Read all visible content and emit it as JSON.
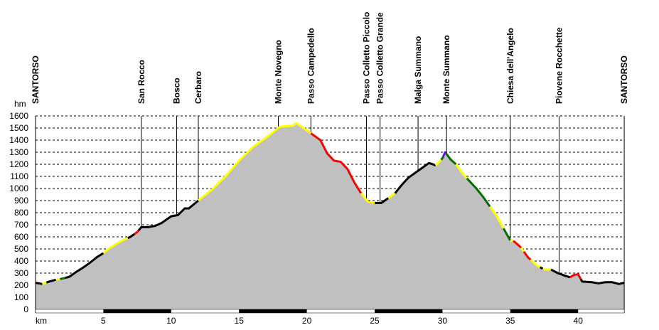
{
  "chart_data": {
    "type": "area",
    "title": "",
    "xlabel": "km",
    "ylabel": "hm",
    "xlim": [
      0,
      43.4
    ],
    "ylim": [
      0,
      1600
    ],
    "grid": true,
    "y_ticks": [
      0,
      100,
      200,
      300,
      400,
      500,
      600,
      700,
      800,
      900,
      1000,
      1100,
      1200,
      1300,
      1400,
      1500,
      1600
    ],
    "x_ticks": [
      5,
      10,
      15,
      20,
      25,
      30,
      35,
      40
    ],
    "fill_color": "#c0c0c0",
    "profile": [
      [
        0,
        220
      ],
      [
        0.5,
        210
      ],
      [
        1,
        230
      ],
      [
        1.5,
        245
      ],
      [
        2,
        255
      ],
      [
        2.5,
        270
      ],
      [
        3,
        310
      ],
      [
        3.5,
        345
      ],
      [
        4,
        385
      ],
      [
        4.5,
        430
      ],
      [
        5,
        465
      ],
      [
        5.5,
        510
      ],
      [
        6,
        545
      ],
      [
        6.5,
        575
      ],
      [
        7,
        600
      ],
      [
        7.5,
        640
      ],
      [
        7.8,
        680
      ],
      [
        8.3,
        680
      ],
      [
        8.8,
        690
      ],
      [
        9.3,
        715
      ],
      [
        10,
        770
      ],
      [
        10.5,
        780
      ],
      [
        11,
        835
      ],
      [
        11.3,
        835
      ],
      [
        12,
        900
      ],
      [
        13,
        990
      ],
      [
        14,
        1100
      ],
      [
        15,
        1230
      ],
      [
        16,
        1340
      ],
      [
        17,
        1420
      ],
      [
        18,
        1510
      ],
      [
        19,
        1520
      ],
      [
        19.2,
        1540
      ],
      [
        19.5,
        1520
      ],
      [
        20,
        1480
      ],
      [
        20.5,
        1440
      ],
      [
        21,
        1400
      ],
      [
        21.5,
        1290
      ],
      [
        22,
        1230
      ],
      [
        22.5,
        1220
      ],
      [
        23,
        1160
      ],
      [
        23.5,
        1050
      ],
      [
        24,
        960
      ],
      [
        24.5,
        890
      ],
      [
        25,
        880
      ],
      [
        25.5,
        880
      ],
      [
        26,
        920
      ],
      [
        26.5,
        960
      ],
      [
        27,
        1030
      ],
      [
        27.5,
        1090
      ],
      [
        28,
        1130
      ],
      [
        28.5,
        1170
      ],
      [
        29,
        1210
      ],
      [
        29.3,
        1200
      ],
      [
        29.5,
        1190
      ],
      [
        30,
        1250
      ],
      [
        30.2,
        1300
      ],
      [
        30.6,
        1240
      ],
      [
        31,
        1200
      ],
      [
        31.5,
        1120
      ],
      [
        32,
        1060
      ],
      [
        32.5,
        1000
      ],
      [
        33,
        930
      ],
      [
        33.5,
        850
      ],
      [
        34,
        770
      ],
      [
        34.5,
        670
      ],
      [
        35,
        570
      ],
      [
        35.3,
        560
      ],
      [
        35.8,
        510
      ],
      [
        36.3,
        430
      ],
      [
        37,
        360
      ],
      [
        37.5,
        330
      ],
      [
        38,
        330
      ],
      [
        38.5,
        300
      ],
      [
        39,
        280
      ],
      [
        39.4,
        265
      ],
      [
        39.7,
        285
      ],
      [
        40,
        290
      ],
      [
        40.3,
        230
      ],
      [
        41,
        225
      ],
      [
        41.5,
        215
      ],
      [
        42,
        225
      ],
      [
        42.5,
        225
      ],
      [
        43,
        210
      ],
      [
        43.4,
        220
      ]
    ],
    "segments": [
      {
        "from": 0,
        "to": 0.5,
        "color": "#000000"
      },
      {
        "from": 0.5,
        "to": 0.8,
        "color": "#ffff00"
      },
      {
        "from": 0.8,
        "to": 1.5,
        "color": "#000000"
      },
      {
        "from": 1.5,
        "to": 1.8,
        "color": "#ffff00"
      },
      {
        "from": 1.8,
        "to": 2.2,
        "color": "#007000"
      },
      {
        "from": 2.2,
        "to": 5,
        "color": "#000000"
      },
      {
        "from": 5,
        "to": 6.8,
        "color": "#ffff00"
      },
      {
        "from": 6.8,
        "to": 7.3,
        "color": "#000000"
      },
      {
        "from": 7.3,
        "to": 7.6,
        "color": "#ff0000"
      },
      {
        "from": 7.6,
        "to": 12,
        "color": "#000000"
      },
      {
        "from": 12,
        "to": 20.3,
        "color": "#ffff00"
      },
      {
        "from": 20.3,
        "to": 24,
        "color": "#ff0000"
      },
      {
        "from": 24,
        "to": 25,
        "color": "#ffff00"
      },
      {
        "from": 25,
        "to": 26,
        "color": "#000000"
      },
      {
        "from": 26,
        "to": 26.5,
        "color": "#ffff00"
      },
      {
        "from": 26.5,
        "to": 29.5,
        "color": "#000000"
      },
      {
        "from": 29.5,
        "to": 29.9,
        "color": "#ffff00"
      },
      {
        "from": 29.9,
        "to": 30.05,
        "color": "#007000"
      },
      {
        "from": 30.05,
        "to": 30.25,
        "color": "#8000ff"
      },
      {
        "from": 30.25,
        "to": 31,
        "color": "#007000"
      },
      {
        "from": 31,
        "to": 31.8,
        "color": "#ffff00"
      },
      {
        "from": 31.8,
        "to": 33.5,
        "color": "#007000"
      },
      {
        "from": 33.5,
        "to": 34.5,
        "color": "#ffff00"
      },
      {
        "from": 34.5,
        "to": 35,
        "color": "#007000"
      },
      {
        "from": 35,
        "to": 35.2,
        "color": "#ffff00"
      },
      {
        "from": 35.2,
        "to": 35.8,
        "color": "#ff0000"
      },
      {
        "from": 35.8,
        "to": 36,
        "color": "#ffff00"
      },
      {
        "from": 36,
        "to": 36.5,
        "color": "#ff0000"
      },
      {
        "from": 36.5,
        "to": 37.2,
        "color": "#ffff00"
      },
      {
        "from": 37.2,
        "to": 37.4,
        "color": "#000000"
      },
      {
        "from": 37.4,
        "to": 38,
        "color": "#ffff00"
      },
      {
        "from": 38,
        "to": 39.4,
        "color": "#000000"
      },
      {
        "from": 39.4,
        "to": 40.2,
        "color": "#ff0000"
      },
      {
        "from": 40.2,
        "to": 43.4,
        "color": "#000000"
      }
    ],
    "waypoints": [
      {
        "name": "SANTORSO",
        "km": 0
      },
      {
        "name": "San Rocco",
        "km": 7.8
      },
      {
        "name": "Bosco",
        "km": 10.4
      },
      {
        "name": "Cerbaro",
        "km": 12.0
      },
      {
        "name": "Monte Novegno",
        "km": 17.9
      },
      {
        "name": "Passo Campedello",
        "km": 20.3
      },
      {
        "name": "Passo Colletto Piccolo",
        "km": 24.4
      },
      {
        "name": "Passo Colletto Grande",
        "km": 25.4
      },
      {
        "name": "Malga Summano",
        "km": 28.2
      },
      {
        "name": "Monte Summano",
        "km": 30.3
      },
      {
        "name": "Chiesa dell'Angelo",
        "km": 35.0
      },
      {
        "name": "Piovene Rocchette",
        "km": 38.6
      },
      {
        "name": "SANTORSO",
        "km": 43.4
      }
    ]
  }
}
